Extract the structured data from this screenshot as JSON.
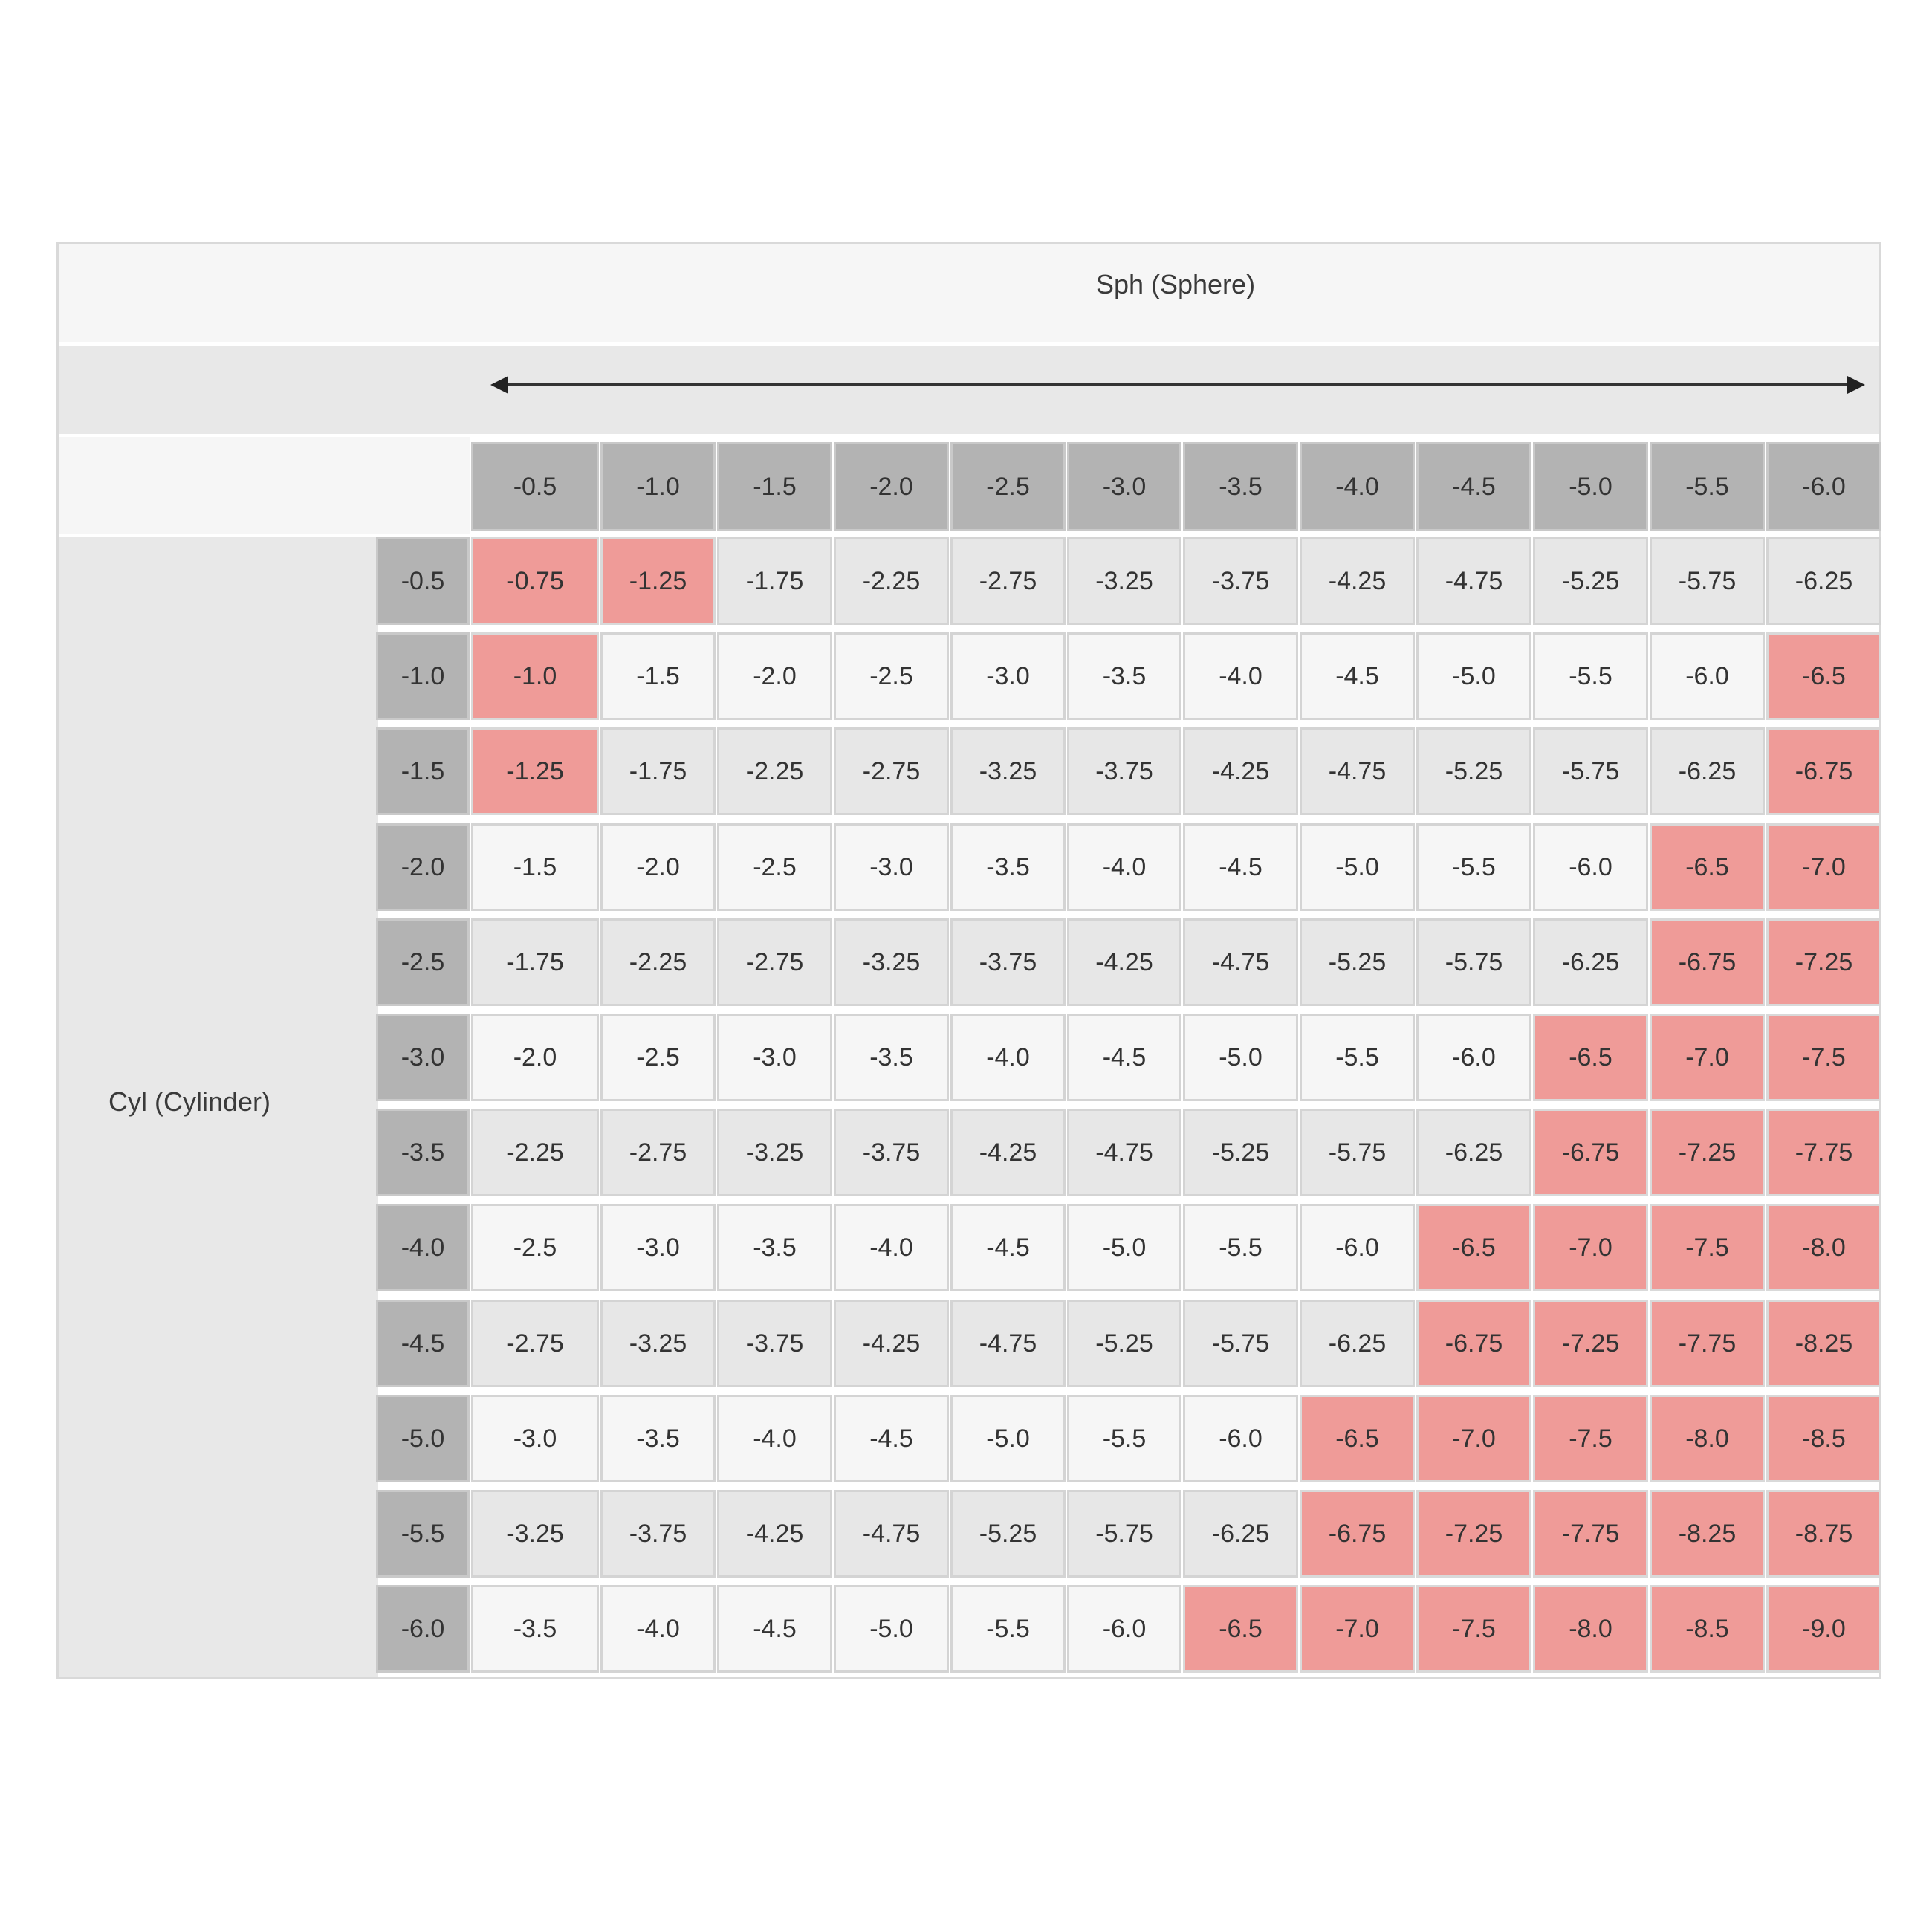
{
  "chart_data": {
    "type": "table",
    "title": "Sph (Sphere)",
    "row_axis_label": "Cyl (Cylinder)",
    "colors": {
      "highlight": "#ef9b98",
      "header": "#b3b3b3",
      "row_shade": "#e7e7e7",
      "row_plain": "#f6f6f6"
    },
    "columns": [
      "-0.5",
      "-1.0",
      "-1.5",
      "-2.0",
      "-2.5",
      "-3.0",
      "-3.5",
      "-4.0",
      "-4.5",
      "-5.0",
      "-5.5",
      "-6.0"
    ],
    "rows": [
      {
        "label": "-0.5",
        "cells": [
          "-0.75",
          "-1.25",
          "-1.75",
          "-2.25",
          "-2.75",
          "-3.25",
          "-3.75",
          "-4.25",
          "-4.75",
          "-5.25",
          "-5.75",
          "-6.25"
        ],
        "highlighted": [
          0,
          1
        ]
      },
      {
        "label": "-1.0",
        "cells": [
          "-1.0",
          "-1.5",
          "-2.0",
          "-2.5",
          "-3.0",
          "-3.5",
          "-4.0",
          "-4.5",
          "-5.0",
          "-5.5",
          "-6.0",
          "-6.5"
        ],
        "highlighted": [
          0,
          11
        ]
      },
      {
        "label": "-1.5",
        "cells": [
          "-1.25",
          "-1.75",
          "-2.25",
          "-2.75",
          "-3.25",
          "-3.75",
          "-4.25",
          "-4.75",
          "-5.25",
          "-5.75",
          "-6.25",
          "-6.75"
        ],
        "highlighted": [
          0,
          11
        ]
      },
      {
        "label": "-2.0",
        "cells": [
          "-1.5",
          "-2.0",
          "-2.5",
          "-3.0",
          "-3.5",
          "-4.0",
          "-4.5",
          "-5.0",
          "-5.5",
          "-6.0",
          "-6.5",
          "-7.0"
        ],
        "highlighted": [
          10,
          11
        ]
      },
      {
        "label": "-2.5",
        "cells": [
          "-1.75",
          "-2.25",
          "-2.75",
          "-3.25",
          "-3.75",
          "-4.25",
          "-4.75",
          "-5.25",
          "-5.75",
          "-6.25",
          "-6.75",
          "-7.25"
        ],
        "highlighted": [
          10,
          11
        ]
      },
      {
        "label": "-3.0",
        "cells": [
          "-2.0",
          "-2.5",
          "-3.0",
          "-3.5",
          "-4.0",
          "-4.5",
          "-5.0",
          "-5.5",
          "-6.0",
          "-6.5",
          "-7.0",
          "-7.5"
        ],
        "highlighted": [
          9,
          10,
          11
        ]
      },
      {
        "label": "-3.5",
        "cells": [
          "-2.25",
          "-2.75",
          "-3.25",
          "-3.75",
          "-4.25",
          "-4.75",
          "-5.25",
          "-5.75",
          "-6.25",
          "-6.75",
          "-7.25",
          "-7.75"
        ],
        "highlighted": [
          9,
          10,
          11
        ]
      },
      {
        "label": "-4.0",
        "cells": [
          "-2.5",
          "-3.0",
          "-3.5",
          "-4.0",
          "-4.5",
          "-5.0",
          "-5.5",
          "-6.0",
          "-6.5",
          "-7.0",
          "-7.5",
          "-8.0"
        ],
        "highlighted": [
          8,
          9,
          10,
          11
        ]
      },
      {
        "label": "-4.5",
        "cells": [
          "-2.75",
          "-3.25",
          "-3.75",
          "-4.25",
          "-4.75",
          "-5.25",
          "-5.75",
          "-6.25",
          "-6.75",
          "-7.25",
          "-7.75",
          "-8.25"
        ],
        "highlighted": [
          8,
          9,
          10,
          11
        ]
      },
      {
        "label": "-5.0",
        "cells": [
          "-3.0",
          "-3.5",
          "-4.0",
          "-4.5",
          "-5.0",
          "-5.5",
          "-6.0",
          "-6.5",
          "-7.0",
          "-7.5",
          "-8.0",
          "-8.5"
        ],
        "highlighted": [
          7,
          8,
          9,
          10,
          11
        ]
      },
      {
        "label": "-5.5",
        "cells": [
          "-3.25",
          "-3.75",
          "-4.25",
          "-4.75",
          "-5.25",
          "-5.75",
          "-6.25",
          "-6.75",
          "-7.25",
          "-7.75",
          "-8.25",
          "-8.75"
        ],
        "highlighted": [
          7,
          8,
          9,
          10,
          11
        ]
      },
      {
        "label": "-6.0",
        "cells": [
          "-3.5",
          "-4.0",
          "-4.5",
          "-5.0",
          "-5.5",
          "-6.0",
          "-6.5",
          "-7.0",
          "-7.5",
          "-8.0",
          "-8.5",
          "-9.0"
        ],
        "highlighted": [
          6,
          7,
          8,
          9,
          10,
          11
        ]
      }
    ]
  }
}
